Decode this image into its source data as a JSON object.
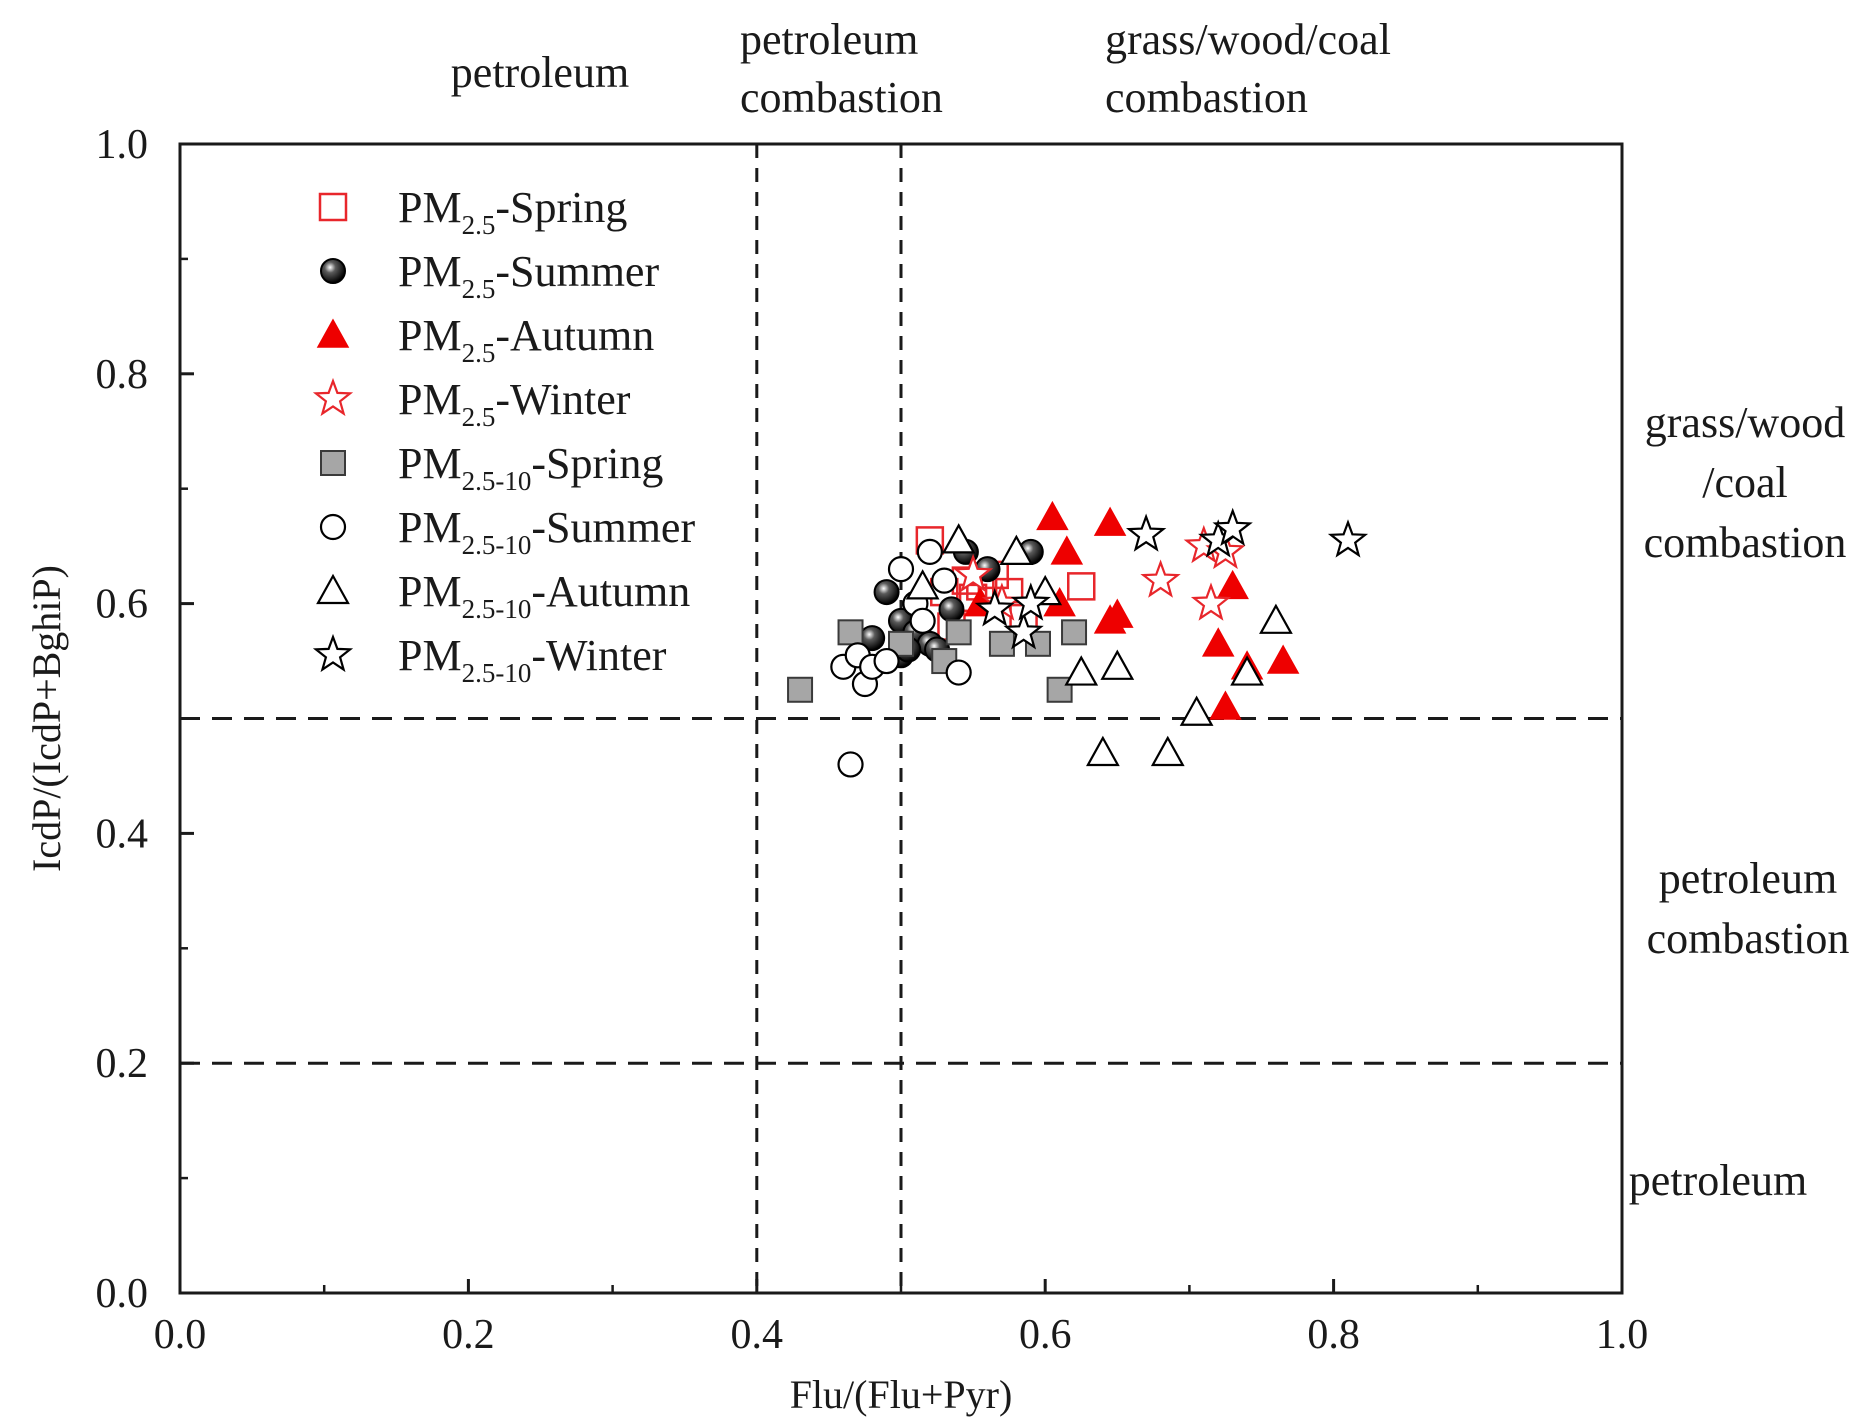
{
  "chart_data": {
    "type": "scatter",
    "xlabel": "Flu/(Flu+Pyr)",
    "ylabel": "IcdP/(IcdP+BghiP)",
    "xlim": [
      0.0,
      1.0
    ],
    "ylim": [
      0.0,
      1.0
    ],
    "xticks": [
      "0.0",
      "0.2",
      "0.4",
      "0.6",
      "0.8",
      "1.0"
    ],
    "yticks": [
      "0.0",
      "0.2",
      "0.4",
      "0.6",
      "0.8",
      "1.0"
    ],
    "grid": false,
    "legend_position": "top-left",
    "reference_lines": {
      "vertical": [
        0.4,
        0.5
      ],
      "horizontal": [
        0.2,
        0.5
      ]
    },
    "top_region_labels": {
      "left": [
        "petroleum"
      ],
      "middle": [
        "petroleum",
        "combastion"
      ],
      "right": [
        "grass/wood/coal",
        "combastion"
      ]
    },
    "side_region_labels": {
      "upper": [
        "grass/wood",
        "/coal",
        "combastion"
      ],
      "middle": [
        "petroleum",
        "combastion"
      ],
      "lower": [
        "petroleum"
      ]
    },
    "series": [
      {
        "name": "PM2.5-Spring",
        "name_main": "PM",
        "name_sub": "2.5",
        "name_suffix": "-Spring",
        "marker": "square-open",
        "color": "#e8262b",
        "points": [
          [
            0.52,
            0.655
          ],
          [
            0.53,
            0.61
          ],
          [
            0.545,
            0.62
          ],
          [
            0.55,
            0.605
          ],
          [
            0.555,
            0.615
          ],
          [
            0.565,
            0.625
          ],
          [
            0.575,
            0.61
          ],
          [
            0.585,
            0.59
          ],
          [
            0.625,
            0.615
          ],
          [
            0.535,
            0.58
          ]
        ]
      },
      {
        "name": "PM2.5-Summer",
        "name_main": "PM",
        "name_sub": "2.5",
        "name_suffix": "-Summer",
        "marker": "sphere",
        "color": "#000000",
        "points": [
          [
            0.48,
            0.57
          ],
          [
            0.49,
            0.61
          ],
          [
            0.5,
            0.585
          ],
          [
            0.5,
            0.555
          ],
          [
            0.51,
            0.575
          ],
          [
            0.52,
            0.565
          ],
          [
            0.525,
            0.56
          ],
          [
            0.535,
            0.595
          ],
          [
            0.545,
            0.645
          ],
          [
            0.56,
            0.63
          ],
          [
            0.59,
            0.645
          ],
          [
            0.505,
            0.56
          ]
        ]
      },
      {
        "name": "PM2.5-Autumn",
        "name_main": "PM",
        "name_sub": "2.5",
        "name_suffix": "-Autumn",
        "marker": "triangle-filled",
        "color": "#ee0000",
        "points": [
          [
            0.555,
            0.6
          ],
          [
            0.605,
            0.675
          ],
          [
            0.61,
            0.6
          ],
          [
            0.615,
            0.645
          ],
          [
            0.645,
            0.67
          ],
          [
            0.645,
            0.585
          ],
          [
            0.65,
            0.59
          ],
          [
            0.72,
            0.565
          ],
          [
            0.725,
            0.51
          ],
          [
            0.73,
            0.615
          ],
          [
            0.74,
            0.545
          ],
          [
            0.765,
            0.55
          ]
        ]
      },
      {
        "name": "PM2.5-Winter",
        "name_main": "PM",
        "name_sub": "2.5",
        "name_suffix": "-Winter",
        "marker": "star-open",
        "color": "#e8262b",
        "points": [
          [
            0.55,
            0.625
          ],
          [
            0.57,
            0.6
          ],
          [
            0.68,
            0.62
          ],
          [
            0.71,
            0.65
          ],
          [
            0.715,
            0.6
          ],
          [
            0.725,
            0.645
          ]
        ]
      },
      {
        "name": "PM2.5-10-Spring",
        "name_main": "PM",
        "name_sub": "2.5-10",
        "name_suffix": "-Spring",
        "marker": "square-filled",
        "color": "#a6a6a6",
        "points": [
          [
            0.43,
            0.525
          ],
          [
            0.465,
            0.575
          ],
          [
            0.5,
            0.565
          ],
          [
            0.53,
            0.55
          ],
          [
            0.54,
            0.575
          ],
          [
            0.57,
            0.565
          ],
          [
            0.595,
            0.565
          ],
          [
            0.62,
            0.575
          ],
          [
            0.61,
            0.525
          ]
        ]
      },
      {
        "name": "PM2.5-10-Summer",
        "name_main": "PM",
        "name_sub": "2.5-10",
        "name_suffix": "-Summer",
        "marker": "circle-open",
        "color": "#000000",
        "points": [
          [
            0.46,
            0.545
          ],
          [
            0.47,
            0.555
          ],
          [
            0.475,
            0.53
          ],
          [
            0.48,
            0.545
          ],
          [
            0.49,
            0.55
          ],
          [
            0.5,
            0.63
          ],
          [
            0.51,
            0.6
          ],
          [
            0.515,
            0.585
          ],
          [
            0.52,
            0.645
          ],
          [
            0.53,
            0.62
          ],
          [
            0.54,
            0.54
          ],
          [
            0.465,
            0.46
          ]
        ]
      },
      {
        "name": "PM2.5-10-Autumn",
        "name_main": "PM",
        "name_sub": "2.5-10",
        "name_suffix": "-Autumn",
        "marker": "triangle-open",
        "color": "#000000",
        "points": [
          [
            0.515,
            0.615
          ],
          [
            0.54,
            0.655
          ],
          [
            0.58,
            0.645
          ],
          [
            0.6,
            0.61
          ],
          [
            0.625,
            0.54
          ],
          [
            0.64,
            0.47
          ],
          [
            0.65,
            0.545
          ],
          [
            0.685,
            0.47
          ],
          [
            0.705,
            0.505
          ],
          [
            0.74,
            0.54
          ],
          [
            0.76,
            0.585
          ]
        ]
      },
      {
        "name": "PM2.5-10-Winter",
        "name_main": "PM",
        "name_sub": "2.5-10",
        "name_suffix": "-Winter",
        "marker": "star-open",
        "color": "#000000",
        "points": [
          [
            0.565,
            0.595
          ],
          [
            0.585,
            0.575
          ],
          [
            0.59,
            0.6
          ],
          [
            0.67,
            0.66
          ],
          [
            0.72,
            0.655
          ],
          [
            0.73,
            0.665
          ],
          [
            0.81,
            0.655
          ]
        ]
      }
    ]
  }
}
